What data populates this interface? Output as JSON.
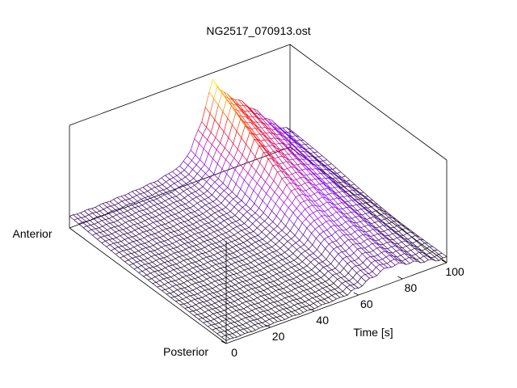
{
  "chart_data": {
    "type": "surface",
    "title": "NG2517_070913.ost",
    "xlabel": "Time [s]",
    "xticks": [
      "0",
      "20",
      "40",
      "60",
      "80",
      "100"
    ],
    "xlim": [
      0,
      100
    ],
    "y_endpoints": {
      "near": "Posterior",
      "far": "Anterior"
    },
    "z_axis_labeled": false,
    "grid": false,
    "colormap": [
      "#000000",
      "#8a00ff",
      "#ff0000",
      "#ffff00"
    ],
    "surface_description": "wireframe surface; low flat plateau at early times, a ridge peaking near t≈65 s at the anterior side, decaying toward posterior and toward 100 s",
    "ridge_profile": {
      "t": [
        0,
        10,
        20,
        30,
        40,
        50,
        55,
        60,
        65,
        70,
        75,
        80,
        85,
        90,
        95,
        100
      ],
      "anterior_height": [
        0.12,
        0.12,
        0.13,
        0.14,
        0.16,
        0.22,
        0.35,
        0.62,
        1.0,
        0.82,
        0.72,
        0.62,
        0.5,
        0.38,
        0.26,
        0.18
      ],
      "posterior_height": [
        0.03,
        0.03,
        0.03,
        0.03,
        0.03,
        0.04,
        0.05,
        0.08,
        0.12,
        0.16,
        0.18,
        0.16,
        0.13,
        0.1,
        0.07,
        0.05
      ]
    }
  }
}
